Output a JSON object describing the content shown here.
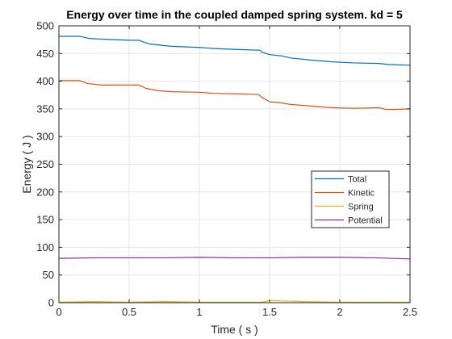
{
  "chart_data": {
    "type": "line",
    "title": "Energy over time in the coupled damped spring system. kd = 5",
    "xlabel": "Time ( s )",
    "ylabel": "Energy ( J )",
    "xlim": [
      0,
      2.5
    ],
    "ylim": [
      0,
      500
    ],
    "x_ticks": [
      0,
      0.5,
      1,
      1.5,
      2,
      2.5
    ],
    "x_tick_labels": [
      "0",
      "0.5",
      "1",
      "1.5",
      "2",
      "2.5"
    ],
    "y_ticks": [
      0,
      50,
      100,
      150,
      200,
      250,
      300,
      350,
      400,
      450,
      500
    ],
    "y_tick_labels": [
      "0",
      "50",
      "100",
      "150",
      "200",
      "250",
      "300",
      "350",
      "400",
      "450",
      "500"
    ],
    "grid": true,
    "legend_position": "right-middle",
    "series": [
      {
        "name": "Total",
        "color": "#0072BD",
        "x": [
          0,
          0.15,
          0.22,
          0.3,
          0.5,
          0.57,
          0.6,
          0.65,
          0.8,
          1.0,
          1.1,
          1.3,
          1.43,
          1.45,
          1.5,
          1.58,
          1.65,
          1.8,
          1.95,
          2.1,
          2.28,
          2.35,
          2.5
        ],
        "values": [
          481,
          481,
          477,
          476,
          474,
          474,
          471,
          467,
          463,
          461,
          459,
          457,
          456,
          452,
          448,
          446,
          442,
          438,
          435,
          433,
          432,
          430,
          429
        ]
      },
      {
        "name": "Kinetic",
        "color": "#D95319",
        "x": [
          0,
          0.15,
          0.2,
          0.3,
          0.5,
          0.57,
          0.62,
          0.7,
          0.8,
          1.0,
          1.1,
          1.3,
          1.42,
          1.45,
          1.5,
          1.58,
          1.65,
          1.8,
          1.95,
          2.1,
          2.28,
          2.33,
          2.4,
          2.5
        ],
        "values": [
          401,
          401,
          396,
          393,
          393,
          393,
          387,
          383,
          381,
          380,
          378,
          377,
          376,
          370,
          363,
          361,
          358,
          355,
          352,
          351,
          352,
          349,
          349,
          350
        ]
      },
      {
        "name": "Spring",
        "color": "#EDB120",
        "x": [
          0,
          0.25,
          0.5,
          0.75,
          1.0,
          1.25,
          1.45,
          1.5,
          1.6,
          1.75,
          2.0,
          2.25,
          2.5
        ],
        "values": [
          1,
          2,
          1,
          2,
          1,
          1,
          1,
          4,
          3,
          2,
          1,
          1,
          1
        ]
      },
      {
        "name": "Potential",
        "color": "#7E2F8E",
        "x": [
          0,
          0.25,
          0.5,
          0.75,
          1.0,
          1.25,
          1.5,
          1.75,
          2.0,
          2.25,
          2.5
        ],
        "values": [
          80,
          81,
          81,
          81,
          82,
          81,
          81,
          82,
          82,
          81,
          79
        ]
      }
    ]
  }
}
